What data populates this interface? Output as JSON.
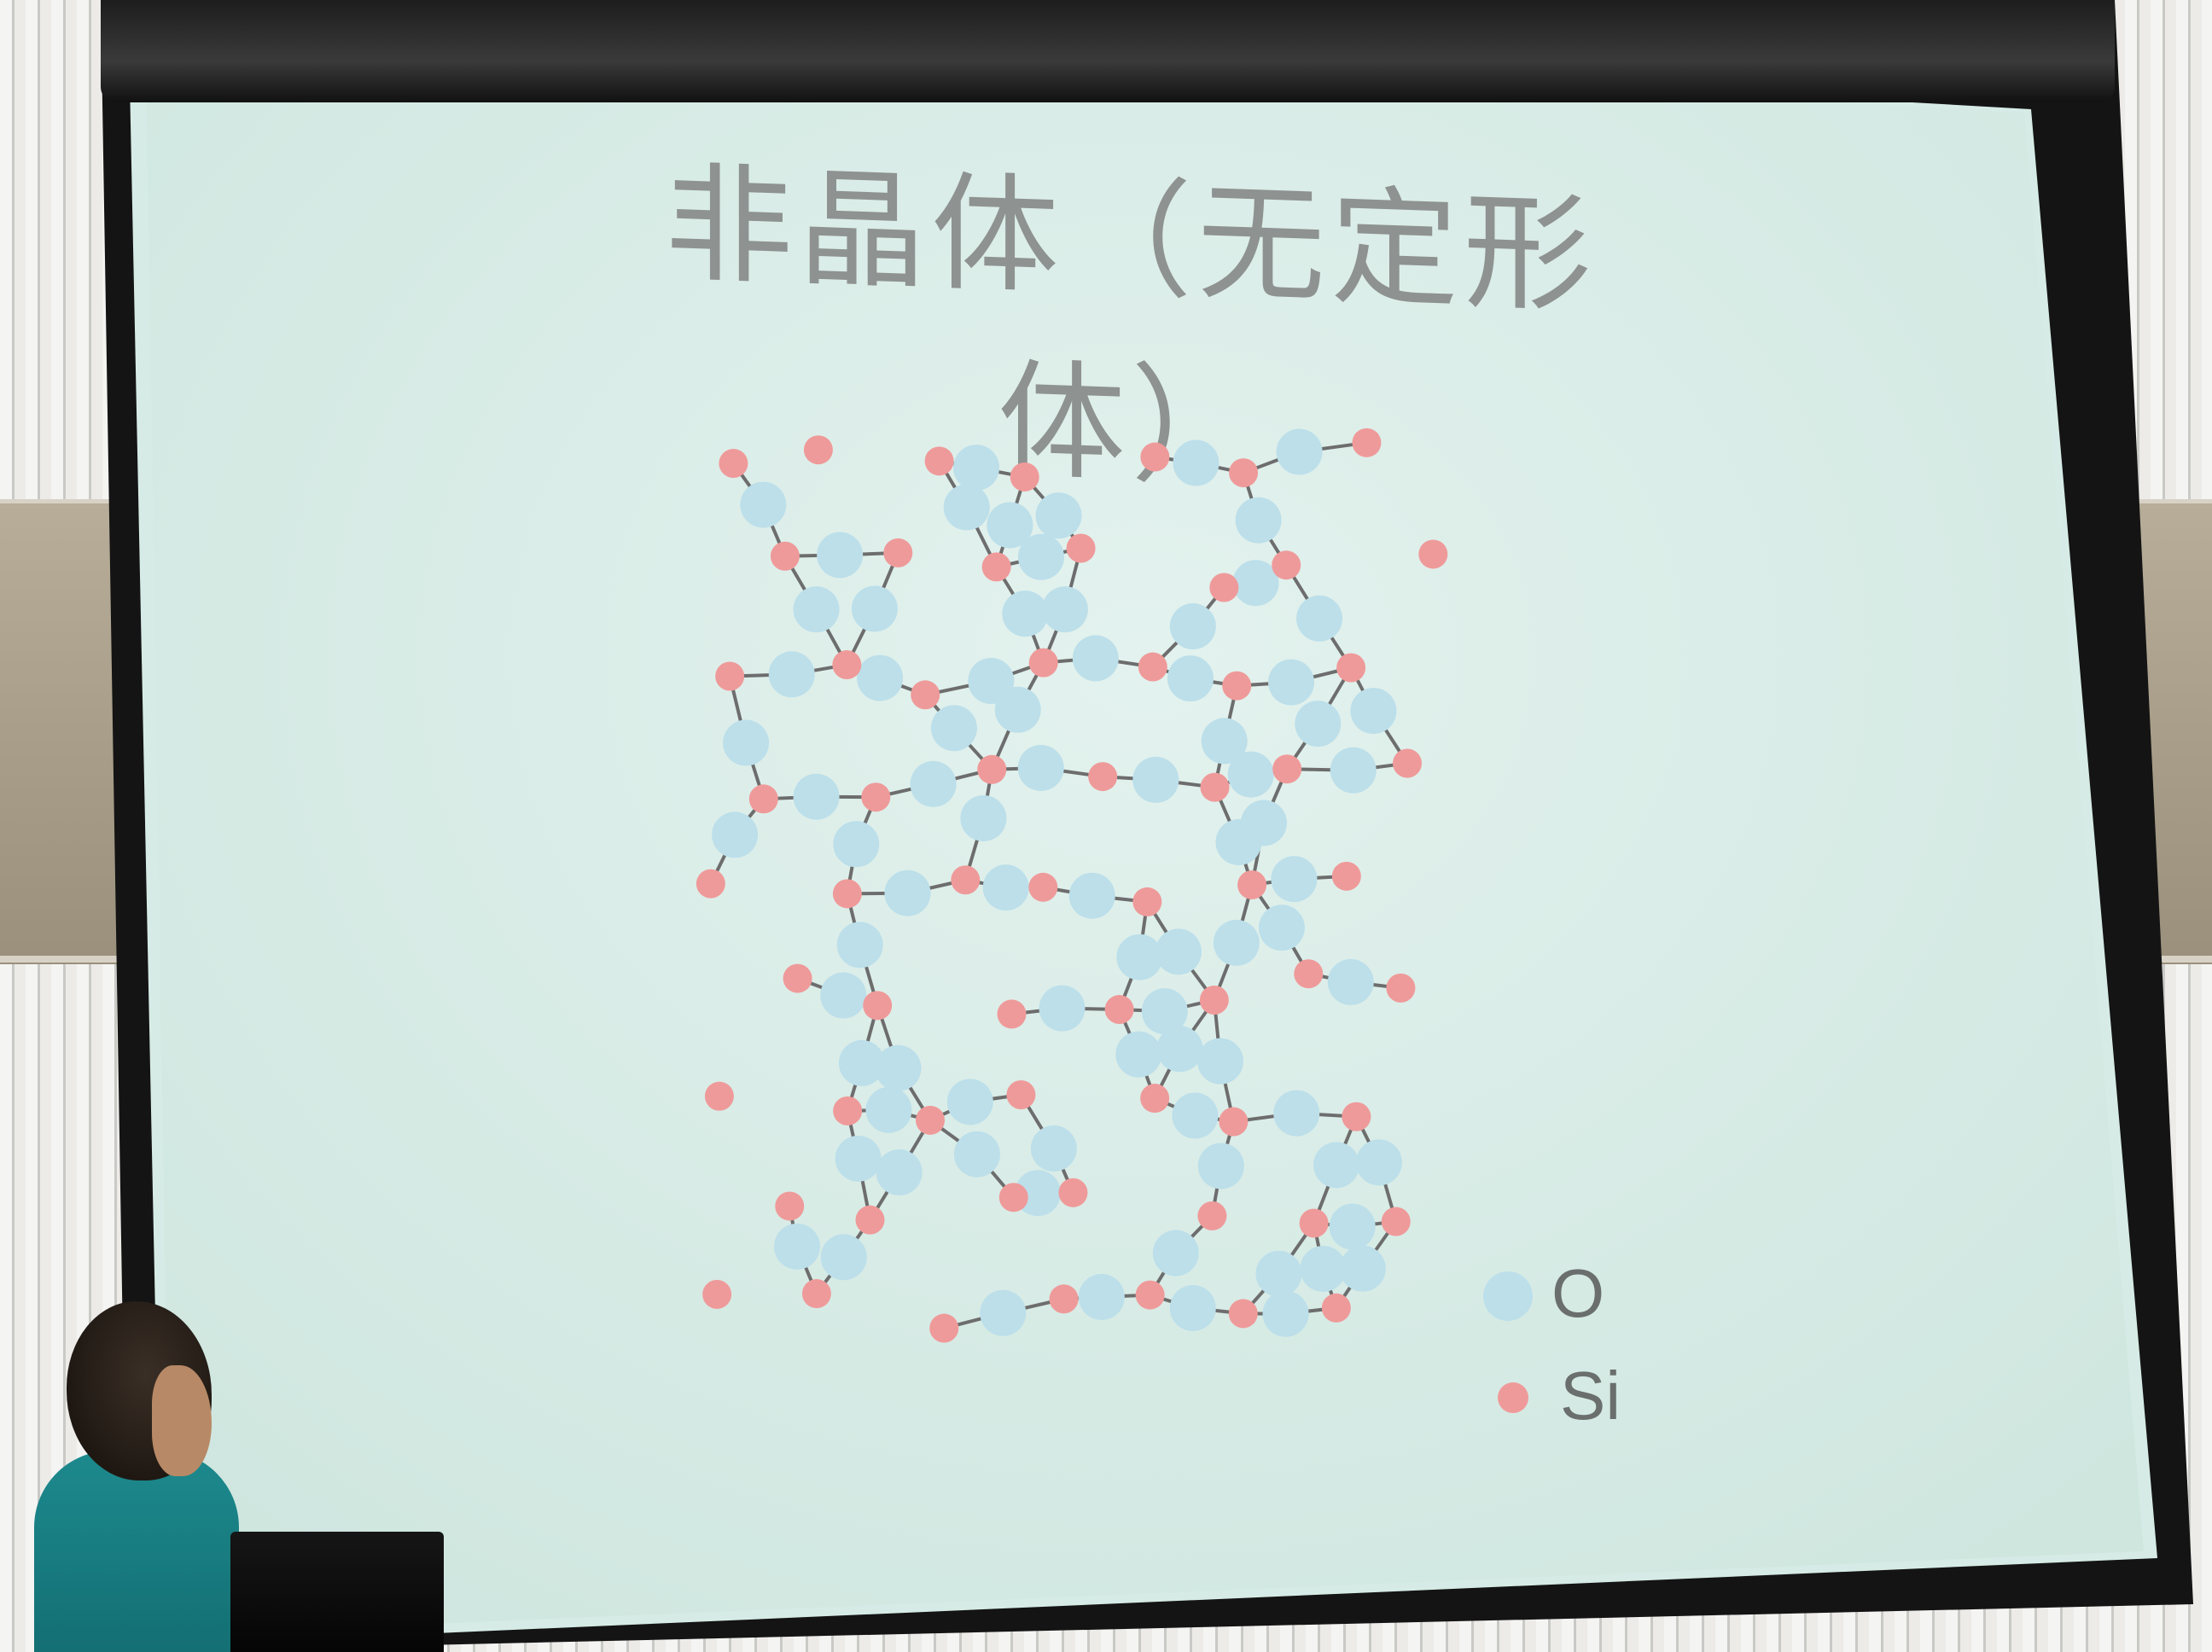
{
  "slide": {
    "title": "非晶体（无定形体）",
    "legend": [
      {
        "label": "O",
        "color": "#bcdfea"
      },
      {
        "label": "Si",
        "color": "#ef9a9a"
      }
    ]
  },
  "colors": {
    "oxygen": "#bcdfea",
    "silicon": "#ef9a9a",
    "bond": "#6d6d6d",
    "slide_background": "#d9ece6"
  }
}
